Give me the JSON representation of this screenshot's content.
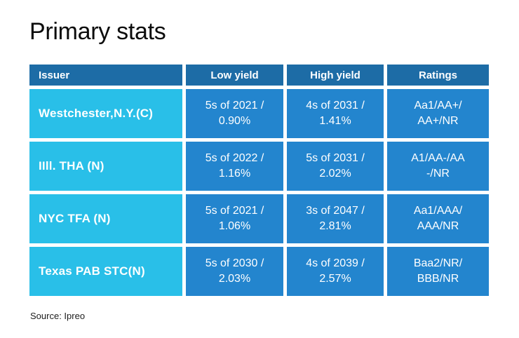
{
  "page": {
    "title": "Primary stats",
    "source": "Source: Ipreo"
  },
  "colors": {
    "header_bg": "#1d6ca6",
    "issuer_cell_bg": "#29bfe8",
    "data_cell_bg": "#2385ce",
    "cell_text": "#ffffff",
    "title_text": "#0c0c0c"
  },
  "chart_data": {
    "type": "table",
    "title": "Primary stats",
    "source": "Source: Ipreo",
    "headers": [
      "Issuer",
      "Low yield",
      "High yield",
      "Ratings"
    ],
    "rows": [
      {
        "issuer": "Westchester,N.Y.(C)",
        "low_yield": [
          "5s of 2021 /",
          "0.90%"
        ],
        "high_yield": [
          "4s of 2031 /",
          "1.41%"
        ],
        "ratings": [
          "Aa1/AA+/",
          "AA+/NR"
        ]
      },
      {
        "issuer": "IIll. THA (N)",
        "low_yield": [
          "5s of 2022 /",
          "1.16%"
        ],
        "high_yield": [
          "5s of 2031 /",
          "2.02%"
        ],
        "ratings": [
          "A1/AA-/AA",
          "-/NR"
        ]
      },
      {
        "issuer": "NYC TFA (N)",
        "low_yield": [
          "5s of 2021 /",
          "1.06%"
        ],
        "high_yield": [
          "3s of 2047 /",
          "2.81%"
        ],
        "ratings": [
          "Aa1/AAA/",
          "AAA/NR"
        ]
      },
      {
        "issuer": "Texas PAB STC(N)",
        "low_yield": [
          "5s of 2030 /",
          "2.03%"
        ],
        "high_yield": [
          "4s of 2039 /",
          "2.57%"
        ],
        "ratings": [
          "Baa2/NR/",
          "BBB/NR"
        ]
      }
    ]
  }
}
